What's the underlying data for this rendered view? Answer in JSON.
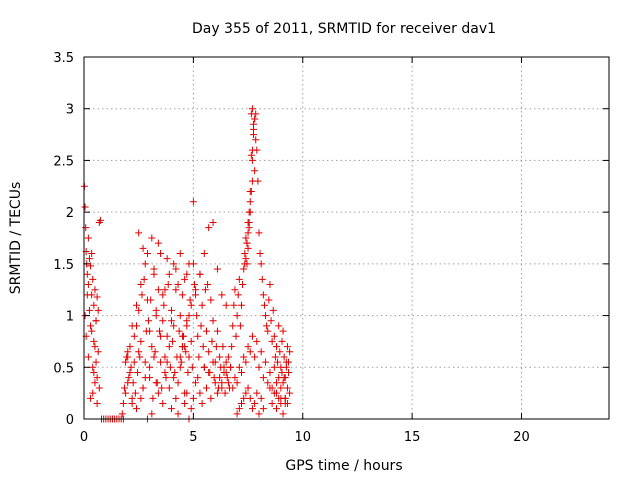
{
  "chart_data": {
    "type": "scatter",
    "marker": "plus",
    "title": "Day 355 of 2011, SRMTID for receiver dav1",
    "xlabel": "GPS time / hours",
    "ylabel": "SRMTID / TECUs",
    "xlim": [
      0,
      24
    ],
    "ylim": [
      0,
      3.5
    ],
    "xticks": [
      0,
      5,
      10,
      15,
      20
    ],
    "xtick_labels": [
      "0",
      "5",
      "10",
      "15",
      "20"
    ],
    "yticks": [
      0,
      0.5,
      1,
      1.5,
      2,
      2.5,
      3,
      3.5
    ],
    "ytick_labels": [
      "0",
      "0.5",
      "1",
      "1.5",
      "2",
      "2.5",
      "3",
      "3.5"
    ],
    "grid": true,
    "series": [
      {
        "name": "SRMTID",
        "color": "#e00000",
        "x": [
          0.02,
          0.05,
          0.08,
          0.1,
          0.12,
          0.15,
          0.2,
          0.25,
          0.3,
          0.35,
          0.4,
          0.45,
          0.5,
          0.55,
          0.6,
          0.65,
          0.7,
          0.75,
          0.05,
          0.1,
          0.2,
          0.3,
          0.4,
          0.5,
          0.6,
          0.7,
          0.15,
          0.25,
          0.35,
          0.45,
          0.55,
          0.65,
          0.3,
          0.4,
          0.5,
          0.6,
          0.2,
          0.35,
          0.45,
          0.55,
          0.8,
          0.9,
          1.0,
          1.1,
          1.2,
          1.3,
          1.4,
          1.5,
          1.6,
          1.7,
          1.8,
          1.75,
          1.8,
          1.85,
          1.9,
          1.95,
          2.0,
          2.05,
          2.1,
          2.15,
          2.2,
          2.25,
          2.3,
          2.35,
          2.4,
          2.45,
          2.5,
          2.55,
          2.6,
          2.65,
          2.7,
          2.75,
          2.8,
          2.85,
          2.9,
          2.95,
          3.0,
          3.05,
          3.1,
          3.15,
          3.2,
          3.25,
          3.3,
          3.35,
          3.4,
          3.45,
          3.5,
          3.55,
          3.6,
          3.65,
          3.7,
          3.75,
          3.8,
          3.85,
          3.9,
          3.95,
          4.0,
          4.05,
          4.1,
          4.15,
          4.2,
          4.25,
          4.3,
          4.35,
          4.4,
          4.45,
          4.5,
          4.55,
          4.6,
          4.65,
          4.7,
          4.75,
          4.8,
          4.85,
          4.9,
          4.95,
          1.9,
          2.0,
          2.1,
          2.2,
          2.3,
          2.4,
          2.5,
          2.6,
          2.7,
          2.8,
          2.9,
          3.0,
          3.1,
          3.2,
          3.3,
          3.4,
          3.5,
          3.6,
          3.7,
          3.8,
          3.9,
          4.0,
          4.1,
          4.2,
          4.3,
          4.4,
          4.5,
          4.6,
          4.7,
          4.8,
          4.9,
          2.0,
          2.2,
          2.4,
          2.6,
          2.8,
          3.0,
          3.2,
          3.4,
          3.6,
          3.8,
          4.0,
          4.2,
          4.4,
          4.6,
          4.8,
          2.5,
          2.7,
          2.9,
          3.1,
          3.3,
          3.5,
          3.7,
          3.9,
          4.1,
          4.3,
          4.5,
          4.7,
          4.4,
          4.5,
          4.6,
          4.7,
          4.8,
          4.9,
          5.0,
          5.0,
          5.05,
          5.1,
          5.15,
          5.2,
          5.25,
          5.3,
          5.35,
          5.4,
          5.45,
          5.5,
          5.55,
          5.6,
          5.65,
          5.7,
          5.75,
          5.8,
          5.85,
          5.9,
          5.95,
          6.0,
          6.05,
          6.1,
          6.15,
          6.2,
          6.25,
          6.3,
          6.35,
          6.4,
          6.45,
          6.5,
          6.55,
          6.6,
          6.65,
          6.7,
          5.0,
          5.1,
          5.2,
          5.3,
          5.4,
          5.5,
          5.6,
          5.7,
          5.8,
          5.9,
          6.0,
          6.1,
          6.2,
          6.3,
          6.4,
          6.5,
          6.6,
          5.1,
          5.3,
          5.5,
          5.7,
          5.9,
          6.1,
          6.3,
          6.5,
          6.7,
          6.75,
          6.8,
          6.85,
          6.9,
          6.95,
          7.0,
          7.05,
          7.1,
          7.15,
          7.2,
          7.25,
          7.3,
          7.35,
          7.4,
          7.45,
          7.5,
          7.55,
          7.6,
          7.65,
          7.7,
          7.75,
          7.8,
          7.85,
          7.9,
          7.95,
          8.0,
          8.05,
          8.1,
          8.15,
          8.2,
          8.25,
          8.3,
          8.35,
          8.4,
          8.45,
          8.5,
          8.55,
          8.6,
          8.65,
          8.7,
          8.75,
          8.8,
          8.85,
          8.9,
          8.95,
          9.0,
          9.05,
          9.1,
          9.15,
          9.2,
          9.25,
          9.3,
          9.35,
          9.4,
          6.8,
          6.9,
          7.0,
          7.1,
          7.2,
          7.3,
          7.4,
          7.5,
          7.6,
          7.7,
          7.8,
          7.9,
          8.0,
          8.1,
          8.2,
          8.3,
          8.4,
          8.5,
          8.6,
          8.7,
          8.8,
          8.9,
          9.0,
          9.1,
          9.2,
          9.3,
          7.0,
          7.1,
          7.2,
          7.3,
          7.4,
          7.5,
          7.6,
          7.7,
          7.8,
          7.9,
          8.0,
          8.1,
          8.2,
          7.35,
          7.4,
          7.45,
          7.5,
          7.55,
          7.6,
          7.65,
          7.7,
          7.75,
          7.8,
          7.85,
          7.65,
          7.7,
          7.75,
          7.6,
          7.7,
          7.8,
          7.55,
          7.5,
          7.45,
          8.5,
          8.6,
          8.7,
          8.8,
          8.9,
          9.0,
          9.1,
          9.2,
          9.3,
          9.4,
          8.8,
          9.0,
          9.2,
          9.05,
          9.15,
          9.25,
          9.35
        ],
        "y": [
          2.25,
          2.05,
          1.85,
          1.62,
          1.5,
          1.4,
          1.3,
          1.55,
          1.48,
          1.2,
          1.35,
          1.1,
          1.25,
          0.95,
          1.18,
          1.05,
          1.9,
          1.92,
          1.0,
          0.8,
          0.6,
          0.9,
          0.5,
          0.7,
          0.4,
          0.3,
          1.2,
          1.05,
          0.85,
          0.45,
          0.55,
          0.65,
          0.2,
          0.25,
          0.35,
          0.15,
          1.75,
          1.6,
          0.75,
          0.95,
          0.0,
          0.0,
          0.0,
          0.0,
          0.0,
          0.0,
          0.0,
          0.0,
          0.0,
          0.0,
          0.0,
          0.05,
          0.15,
          0.3,
          0.55,
          0.6,
          0.65,
          0.4,
          0.7,
          0.5,
          0.2,
          0.35,
          0.8,
          0.25,
          0.9,
          0.45,
          1.05,
          0.6,
          0.75,
          1.2,
          0.3,
          1.35,
          0.55,
          0.85,
          1.6,
          0.95,
          0.4,
          1.15,
          0.7,
          0.2,
          1.45,
          0.65,
          1.0,
          0.35,
          1.25,
          0.85,
          0.55,
          0.3,
          0.95,
          1.1,
          0.6,
          0.4,
          0.8,
          1.3,
          0.7,
          0.5,
          1.05,
          0.75,
          0.9,
          0.45,
          1.25,
          0.6,
          0.35,
          0.85,
          1.0,
          0.55,
          0.7,
          0.8,
          0.25,
          0.65,
          0.95,
          0.45,
          0.6,
          1.15,
          0.75,
          0.5,
          0.25,
          0.35,
          0.45,
          0.15,
          0.55,
          0.1,
          0.65,
          0.2,
          0.3,
          0.4,
          0.0,
          0.5,
          0.05,
          0.6,
          0.35,
          0.25,
          0.8,
          0.15,
          0.45,
          0.55,
          0.3,
          0.1,
          0.4,
          0.2,
          0.05,
          0.5,
          0.7,
          0.15,
          0.25,
          0.0,
          0.1,
          0.6,
          0.9,
          1.1,
          1.3,
          1.5,
          0.85,
          1.4,
          1.7,
          1.2,
          1.55,
          0.95,
          1.45,
          1.6,
          1.35,
          1.5,
          1.8,
          1.65,
          1.15,
          1.75,
          1.05,
          1.6,
          1.25,
          1.4,
          1.5,
          1.3,
          1.2,
          1.4,
          0.6,
          0.8,
          0.7,
          0.9,
          1.0,
          1.1,
          2.1,
          1.5,
          1.3,
          1.2,
          1.0,
          0.8,
          0.6,
          1.4,
          0.9,
          1.1,
          0.7,
          0.5,
          1.25,
          0.85,
          1.3,
          0.65,
          0.45,
          1.15,
          0.75,
          0.95,
          0.4,
          0.55,
          0.7,
          0.85,
          0.3,
          0.6,
          0.5,
          0.35,
          0.7,
          0.45,
          0.25,
          0.55,
          0.4,
          0.6,
          0.3,
          0.5,
          0.2,
          0.35,
          0.4,
          0.25,
          0.15,
          0.5,
          0.3,
          0.45,
          0.2,
          0.55,
          0.35,
          0.25,
          0.4,
          0.3,
          0.5,
          0.45,
          0.35,
          1.25,
          1.4,
          1.6,
          1.85,
          1.9,
          1.45,
          1.2,
          1.1,
          0.5,
          0.7,
          0.9,
          1.1,
          1.25,
          0.8,
          1.0,
          1.2,
          1.35,
          0.9,
          1.1,
          1.3,
          1.45,
          1.5,
          1.55,
          1.7,
          1.8,
          1.9,
          2.0,
          2.2,
          2.5,
          2.8,
          2.9,
          2.95,
          2.6,
          2.3,
          1.8,
          1.6,
          1.5,
          1.35,
          1.2,
          1.1,
          1.0,
          0.9,
          0.85,
          1.15,
          1.3,
          0.95,
          0.75,
          1.05,
          0.8,
          0.6,
          0.7,
          0.55,
          0.9,
          0.65,
          0.5,
          0.75,
          0.85,
          0.6,
          0.4,
          0.55,
          0.7,
          0.45,
          0.65,
          0.3,
          0.4,
          0.35,
          0.5,
          0.45,
          0.6,
          0.55,
          0.7,
          0.65,
          0.8,
          0.6,
          0.75,
          0.5,
          0.65,
          0.4,
          0.55,
          0.35,
          0.45,
          0.3,
          0.5,
          0.25,
          0.4,
          0.2,
          0.35,
          0.15,
          0.3,
          0.05,
          0.1,
          0.15,
          0.2,
          0.25,
          0.3,
          0.2,
          0.1,
          0.15,
          0.25,
          0.05,
          0.2,
          0.1,
          1.6,
          1.75,
          1.7,
          1.9,
          2.0,
          2.1,
          2.55,
          2.6,
          2.85,
          2.9,
          2.7,
          2.95,
          3.0,
          2.75,
          2.2,
          2.3,
          2.4,
          1.85,
          1.65,
          1.5,
          0.3,
          0.15,
          0.25,
          0.1,
          0.2,
          0.15,
          0.05,
          0.2,
          0.15,
          0.25,
          0.35,
          0.3,
          0.2,
          0.45,
          0.4,
          0.5,
          0.55
        ]
      }
    ]
  }
}
